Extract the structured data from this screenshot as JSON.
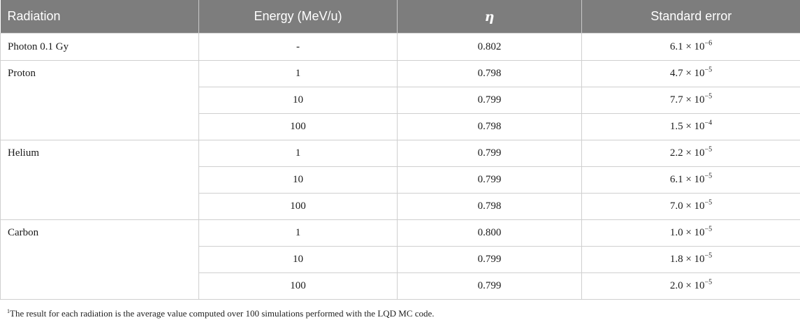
{
  "table": {
    "headers": {
      "radiation": "Radiation",
      "energy": "Energy (MeV/u)",
      "eta": "η",
      "std_error": "Standard error"
    },
    "groups": [
      {
        "radiation": "Photon 0.1 Gy",
        "rows": [
          {
            "energy": "-",
            "eta": "0.802",
            "error_mantissa": "6.1 × 10",
            "error_exponent": "−6"
          }
        ]
      },
      {
        "radiation": "Proton",
        "rows": [
          {
            "energy": "1",
            "eta": "0.798",
            "error_mantissa": "4.7 × 10",
            "error_exponent": "−5"
          },
          {
            "energy": "10",
            "eta": "0.799",
            "error_mantissa": "7.7 × 10",
            "error_exponent": "−5"
          },
          {
            "energy": "100",
            "eta": "0.798",
            "error_mantissa": "1.5 × 10",
            "error_exponent": "−4"
          }
        ]
      },
      {
        "radiation": "Helium",
        "rows": [
          {
            "energy": "1",
            "eta": "0.799",
            "error_mantissa": "2.2 × 10",
            "error_exponent": "−5"
          },
          {
            "energy": "10",
            "eta": "0.799",
            "error_mantissa": "6.1 × 10",
            "error_exponent": "−5"
          },
          {
            "energy": "100",
            "eta": "0.798",
            "error_mantissa": "7.0 × 10",
            "error_exponent": "−5"
          }
        ]
      },
      {
        "radiation": "Carbon",
        "rows": [
          {
            "energy": "1",
            "eta": "0.800",
            "error_mantissa": "1.0 × 10",
            "error_exponent": "−5"
          },
          {
            "energy": "10",
            "eta": "0.799",
            "error_mantissa": "1.8 × 10",
            "error_exponent": "−5"
          },
          {
            "energy": "100",
            "eta": "0.799",
            "error_mantissa": "2.0 × 10",
            "error_exponent": "−5"
          }
        ]
      }
    ]
  },
  "footnote": {
    "marker": "1",
    "text": "The result for each radiation is the average value computed over 100 simulations performed with the LQD MC code."
  }
}
